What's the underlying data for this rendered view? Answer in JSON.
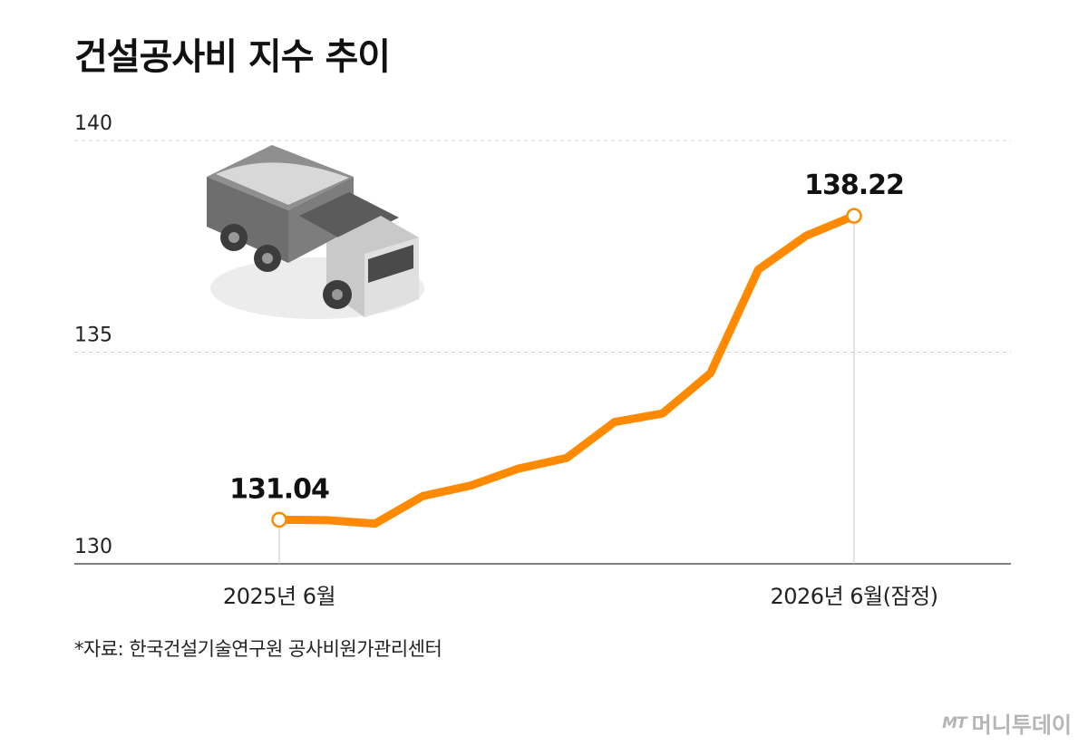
{
  "title": "건설공사비 지수 추이",
  "source": "*자료: 한국건설기술연구원 공사비원가관리센터",
  "brand": {
    "logo": "MT",
    "name": "머니투데이"
  },
  "colors": {
    "line": "#ff8a00",
    "grid": "#cfcfcf",
    "axis": "#555555"
  },
  "chart_data": {
    "type": "line",
    "title": "건설공사비 지수 추이",
    "xlabel": "",
    "ylabel": "",
    "ylim": [
      130,
      140
    ],
    "yticks": [
      "130",
      "135",
      "140"
    ],
    "grid": true,
    "x_labels": [
      {
        "index": 0,
        "label": "2025년 6월"
      },
      {
        "index": 12,
        "label": "2026년 6월(잠정)"
      }
    ],
    "series": [
      {
        "values": [
          131.04,
          131.03,
          130.95,
          131.6,
          131.85,
          132.25,
          132.5,
          133.35,
          133.55,
          134.5,
          136.95,
          137.75,
          138.22
        ]
      }
    ],
    "annotations": [
      {
        "index": 0,
        "label": "131.04"
      },
      {
        "index": 12,
        "label": "138.22"
      }
    ]
  }
}
